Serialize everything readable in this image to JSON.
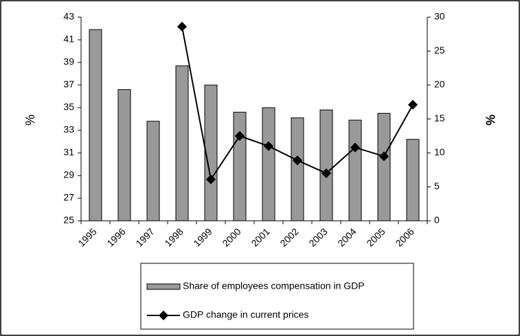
{
  "chart_data": {
    "type": "bar_line",
    "categories": [
      "1995",
      "1996",
      "1997",
      "1998",
      "1999",
      "2000",
      "2001",
      "2002",
      "2003",
      "2004",
      "2005",
      "2006"
    ],
    "ylabel": "%",
    "y2label": "%",
    "ylim": [
      25,
      43
    ],
    "yticks": [
      25,
      27,
      29,
      31,
      33,
      35,
      37,
      39,
      41,
      43
    ],
    "y2lim": [
      0,
      30
    ],
    "y2ticks": [
      0,
      5,
      10,
      15,
      20,
      25,
      30
    ],
    "series": [
      {
        "name": "Share of employees compensation in GDP",
        "type": "bar",
        "color": "#999999",
        "values": [
          41.9,
          36.6,
          33.8,
          38.7,
          37.0,
          34.6,
          35.0,
          34.1,
          34.8,
          33.9,
          34.5,
          32.2
        ]
      },
      {
        "name": "GDP change in current prices",
        "type": "line",
        "axis": "y2",
        "color": "#000000",
        "values": [
          null,
          null,
          null,
          28.6,
          6.1,
          12.5,
          11.0,
          8.9,
          7.0,
          10.8,
          9.5,
          17.1
        ]
      }
    ]
  }
}
